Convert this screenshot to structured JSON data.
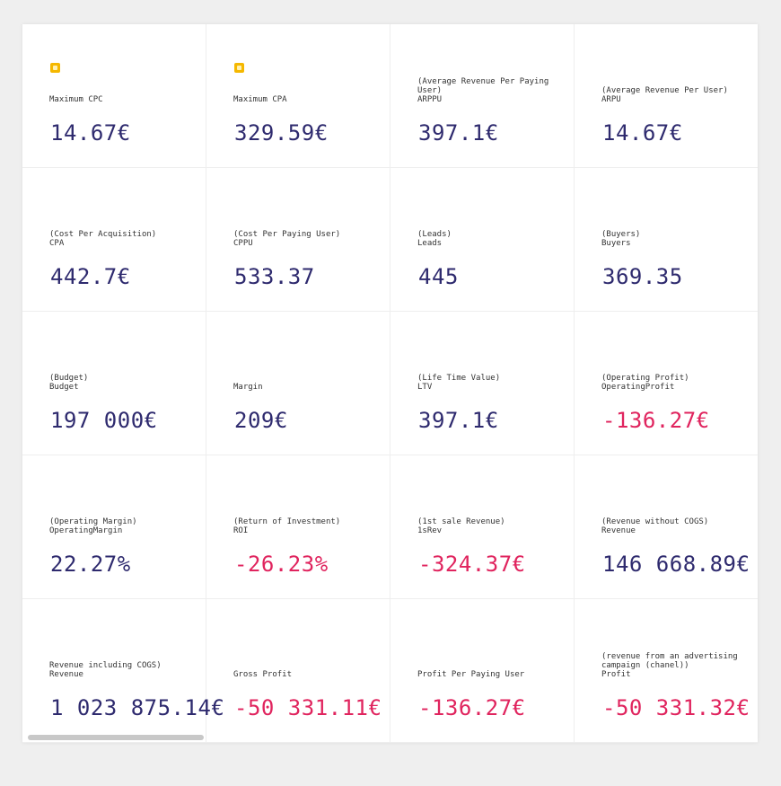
{
  "metrics": [
    {
      "desc": "",
      "name": "Maximum CPC",
      "value": "14.67€",
      "pinned": true,
      "negative": false
    },
    {
      "desc": "",
      "name": "Maximum CPA",
      "value": "329.59€",
      "pinned": true,
      "negative": false
    },
    {
      "desc": "(Average Revenue Per Paying User)",
      "name": "ARPPU",
      "value": "397.1€",
      "pinned": false,
      "negative": false
    },
    {
      "desc": "(Average Revenue Per User)",
      "name": "ARPU",
      "value": "14.67€",
      "pinned": false,
      "negative": false
    },
    {
      "desc": "(Cost Per Acquisition)",
      "name": "CPA",
      "value": "442.7€",
      "pinned": false,
      "negative": false
    },
    {
      "desc": "(Cost Per Paying User)",
      "name": "CPPU",
      "value": "533.37",
      "pinned": false,
      "negative": false
    },
    {
      "desc": "(Leads)",
      "name": "Leads",
      "value": "445",
      "pinned": false,
      "negative": false
    },
    {
      "desc": "(Buyers)",
      "name": "Buyers",
      "value": "369.35",
      "pinned": false,
      "negative": false
    },
    {
      "desc": "(Budget)",
      "name": "Budget",
      "value": "197 000€",
      "pinned": false,
      "negative": false
    },
    {
      "desc": "",
      "name": "Margin",
      "value": "209€",
      "pinned": false,
      "negative": false
    },
    {
      "desc": "(Life Time Value)",
      "name": "LTV",
      "value": "397.1€",
      "pinned": false,
      "negative": false
    },
    {
      "desc": "(Operating Profit)",
      "name": "OperatingProfit",
      "value": "-136.27€",
      "pinned": false,
      "negative": true
    },
    {
      "desc": "(Operating Margin)",
      "name": "OperatingMargin",
      "value": "22.27%",
      "pinned": false,
      "negative": false
    },
    {
      "desc": "(Return of Investment)",
      "name": "ROI",
      "value": "-26.23%",
      "pinned": false,
      "negative": true
    },
    {
      "desc": "(1st sale Revenue)",
      "name": "1sRev",
      "value": "-324.37€",
      "pinned": false,
      "negative": true
    },
    {
      "desc": "(Revenue without COGS)",
      "name": "Revenue",
      "value": "146 668.89€",
      "pinned": false,
      "negative": false
    },
    {
      "desc": "Revenue including COGS)",
      "name": "Revenue",
      "value": "1 023 875.14€",
      "pinned": false,
      "negative": false
    },
    {
      "desc": "",
      "name": "Gross Profit",
      "value": "-50 331.11€",
      "pinned": false,
      "negative": true
    },
    {
      "desc": "",
      "name": "Profit Per Paying User",
      "value": "-136.27€",
      "pinned": false,
      "negative": true
    },
    {
      "desc": "(revenue from an advertising campaign (chanel))",
      "name": "Profit",
      "value": "-50 331.32€",
      "pinned": false,
      "negative": true
    }
  ],
  "colors": {
    "positive": "#2e2a6e",
    "negative": "#e0245e",
    "pin": "#f5b800"
  }
}
